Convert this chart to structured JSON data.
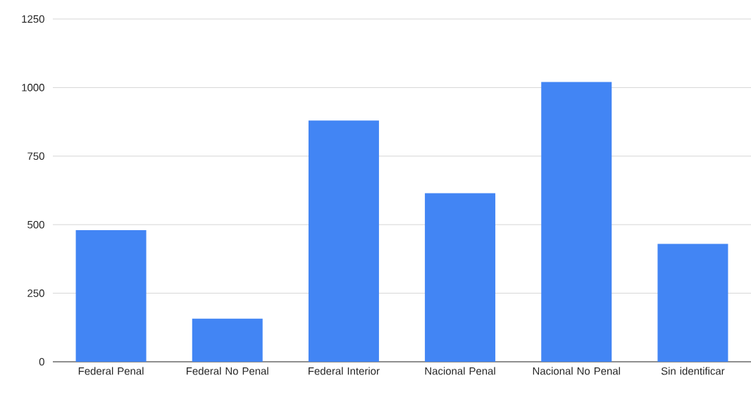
{
  "chart_data": {
    "type": "bar",
    "categories": [
      "Federal Penal",
      "Federal No Penal",
      "Federal Interior",
      "Nacional Penal",
      "Nacional No Penal",
      "Sin identificar"
    ],
    "values": [
      480,
      157,
      880,
      615,
      1020,
      430
    ],
    "color": "#4285f4",
    "ylim": [
      0,
      1250
    ],
    "yticks": [
      0,
      250,
      500,
      750,
      1000,
      1250
    ],
    "grid": "y"
  }
}
